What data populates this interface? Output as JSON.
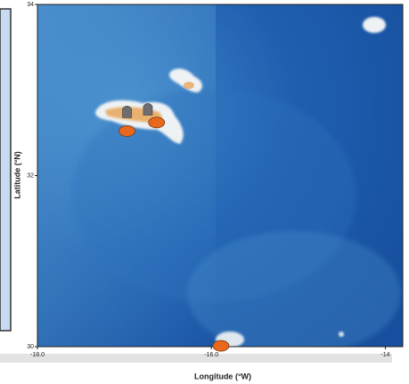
{
  "chart_data": {
    "type": "map",
    "x_label": "Longitude (°W)",
    "y_label": "Latitude (°N)",
    "xlim": [
      -18,
      -13.8
    ],
    "ylim": [
      30,
      34
    ],
    "xticks": [
      {
        "value": -18,
        "label": "-18.0"
      },
      {
        "value": -16,
        "label": "-16.0"
      },
      {
        "value": -14,
        "label": "-14"
      }
    ],
    "yticks": [
      34,
      32,
      30
    ],
    "series": [
      {
        "color": "#e8691e",
        "x": [
          -16.97,
          -16.63,
          -15.89
        ],
        "values": [
          32.52,
          32.62,
          30.01
        ]
      },
      {
        "color": "#6e6e72",
        "x": [
          -16.97,
          -16.73
        ],
        "values": [
          32.75,
          32.78
        ]
      }
    ]
  }
}
